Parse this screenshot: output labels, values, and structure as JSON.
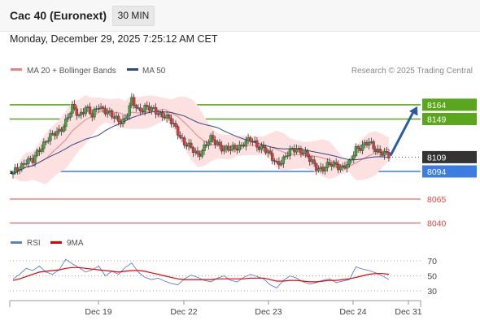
{
  "header": {
    "instrument": "Cac 40 (Euronext)",
    "timeframe": "30 MIN",
    "datetime": "Monday, December 29, 2025 7:25:12 AM CET"
  },
  "legend": {
    "ma20_label": "MA 20 + Bollinger Bands",
    "ma50_label": "MA 50",
    "copyright": "Research © 2025 Trading Central",
    "colors": {
      "ma20": "#f08080",
      "ma50": "#2d4a8a",
      "bands": "#fde0e0"
    }
  },
  "rsi_legend": {
    "rsi_label": "RSI",
    "ma_label": "9MA",
    "colors": {
      "rsi": "#5b7fd6",
      "ma": "#e60000"
    }
  },
  "chart_data": [
    {
      "type": "candlestick",
      "title": "Cac 40 (Euronext) 30 MIN",
      "x_ticks": [
        "Dec 19",
        "Dec 22",
        "Dec 23",
        "Dec 24",
        "Dec 31"
      ],
      "ylim": [
        8030,
        8180
      ],
      "price_path": [
        8091,
        8099,
        8106,
        8104,
        8118,
        8127,
        8131,
        8137,
        8147,
        8160,
        8153,
        8162,
        8151,
        8164,
        8158,
        8151,
        8148,
        8149,
        8167,
        8159,
        8162,
        8158,
        8156,
        8153,
        8145,
        8136,
        8124,
        8117,
        8112,
        8120,
        8127,
        8124,
        8118,
        8116,
        8120,
        8124,
        8126,
        8122,
        8119,
        8109,
        8103,
        8107,
        8114,
        8119,
        8115,
        8105,
        8099,
        8097,
        8100,
        8102,
        8098,
        8101,
        8119,
        8121,
        8123,
        8118,
        8114,
        8109
      ],
      "levels": [
        {
          "label": "8164",
          "value": 8164,
          "color": "#5aa61c"
        },
        {
          "label": "8149",
          "value": 8149,
          "color": "#5aa61c"
        },
        {
          "label": "8109",
          "value": 8109,
          "color": "#333333"
        },
        {
          "label": "8094",
          "value": 8094,
          "color": "#3b7de0"
        },
        {
          "label": "8065",
          "value": 8065,
          "color": "#e8463c"
        },
        {
          "label": "8040",
          "value": 8040,
          "color": "#e8463c"
        }
      ],
      "current_price": 8109,
      "projection": {
        "from": 8109,
        "to": 8164,
        "color": "#2a5aa8"
      },
      "overlays": [
        "MA 20 + Bollinger Bands",
        "MA 50"
      ]
    },
    {
      "type": "line",
      "title": "RSI",
      "ylim": [
        20,
        80
      ],
      "y_ticks": [
        70,
        50,
        30
      ],
      "series": [
        {
          "name": "RSI",
          "values": [
            46,
            52,
            60,
            57,
            63,
            55,
            52,
            58,
            72,
            66,
            61,
            55,
            58,
            63,
            50,
            56,
            52,
            61,
            67,
            55,
            48,
            45,
            47,
            43,
            40,
            38,
            46,
            51,
            48,
            44,
            42,
            47,
            50,
            44,
            42,
            48,
            52,
            49,
            46,
            38,
            34,
            44,
            50,
            47,
            42,
            39,
            41,
            44,
            46,
            41,
            43,
            45,
            62,
            59,
            57,
            54,
            50,
            45
          ]
        },
        {
          "name": "9MA",
          "values": [
            44,
            46,
            49,
            52,
            55,
            56,
            57,
            58,
            60,
            61,
            61,
            60,
            59,
            58,
            57,
            56,
            55,
            56,
            57,
            57,
            56,
            54,
            52,
            50,
            48,
            46,
            45,
            45,
            45,
            45,
            45,
            46,
            46,
            46,
            46,
            46,
            47,
            47,
            47,
            45,
            43,
            43,
            44,
            44,
            43,
            42,
            42,
            43,
            44,
            44,
            45,
            46,
            48,
            50,
            52,
            53,
            53,
            52
          ]
        }
      ]
    }
  ]
}
